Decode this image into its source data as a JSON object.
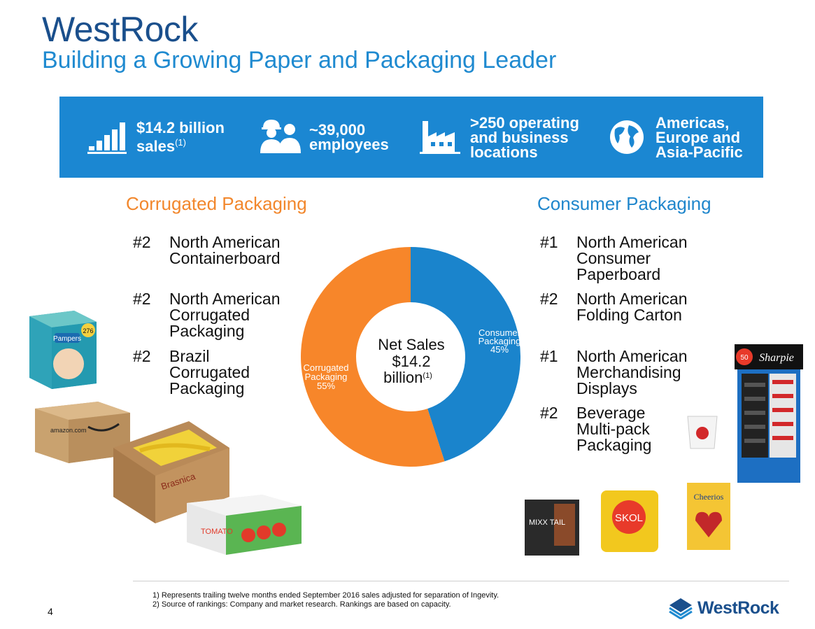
{
  "header": {
    "title": "WestRock",
    "subtitle": "Building a Growing Paper and Packaging Leader"
  },
  "banner": {
    "color": "#1b87d2",
    "stats": [
      {
        "icon": "bar-chart-icon",
        "line1": "$14.2 billion",
        "line2": "sales",
        "sup": "(1)"
      },
      {
        "icon": "employees-icon",
        "line1": "~39,000",
        "line2": "employees"
      },
      {
        "icon": "factory-icon",
        "line1": ">250 operating",
        "line2": "and business",
        "line3": "locations"
      },
      {
        "icon": "globe-icon",
        "line1": "Americas,",
        "line2": "Europe and",
        "line3": "Asia-Pacific"
      }
    ]
  },
  "corrugated": {
    "title": "Corrugated Packaging",
    "color": "#f2872c",
    "rankings": [
      {
        "rank": "#2",
        "label": "North American\nContainerboard"
      },
      {
        "rank": "#2",
        "label": "North American\nCorrugated\nPackaging"
      },
      {
        "rank": "#2",
        "label": "Brazil\nCorrugated\nPackaging"
      }
    ]
  },
  "consumer": {
    "title": "Consumer Packaging",
    "color": "#1f86cc",
    "rankings": [
      {
        "rank": "#1",
        "label": "North American\nConsumer\nPaperboard"
      },
      {
        "rank": "#2",
        "label": "North American\nFolding Carton"
      },
      {
        "rank": "#1",
        "label": "North American\nMerchandising\nDisplays"
      },
      {
        "rank": "#2",
        "label": "Beverage\nMulti-pack\nPackaging"
      }
    ]
  },
  "chart_data": {
    "type": "pie",
    "title": "Net Sales $14.2 billion",
    "center_label": {
      "line1": "Net Sales",
      "line2": "$14.2",
      "line3": "billion",
      "sup": "(1)"
    },
    "categories": [
      "Consumer Packaging",
      "Corrugated Packaging"
    ],
    "values": [
      45,
      55
    ],
    "value_labels": [
      "45%",
      "55%"
    ],
    "colors": [
      "#1a84cc",
      "#f7862a"
    ],
    "slice_labels": [
      {
        "line1": "Consumer",
        "line2": "Packaging",
        "line3": "45%"
      },
      {
        "line1": "Corrugated",
        "line2": "Packaging",
        "line3": "55%"
      }
    ]
  },
  "products": {
    "pampers": {
      "brand": "Pampers",
      "count": "276"
    },
    "amazon": {
      "brand": "amazon.com"
    },
    "bananas": {
      "brand": "Brasnica"
    },
    "tomato": {
      "brand": "TOMATO"
    },
    "mixx": {
      "brand": "MIXX TAIL"
    },
    "skol": {
      "brand": "SKOL"
    },
    "cheerios": {
      "brand": "Cheerios"
    },
    "sharpie": {
      "brand": "Sharpie",
      "badge": "50"
    }
  },
  "footer": {
    "note1": "1) Represents trailing twelve months ended September 2016 sales adjusted for separation of Ingevity.",
    "note2": "2) Source of rankings: Company and market research. Rankings are based on capacity.",
    "page": "4",
    "logo_text": "WestRock"
  }
}
